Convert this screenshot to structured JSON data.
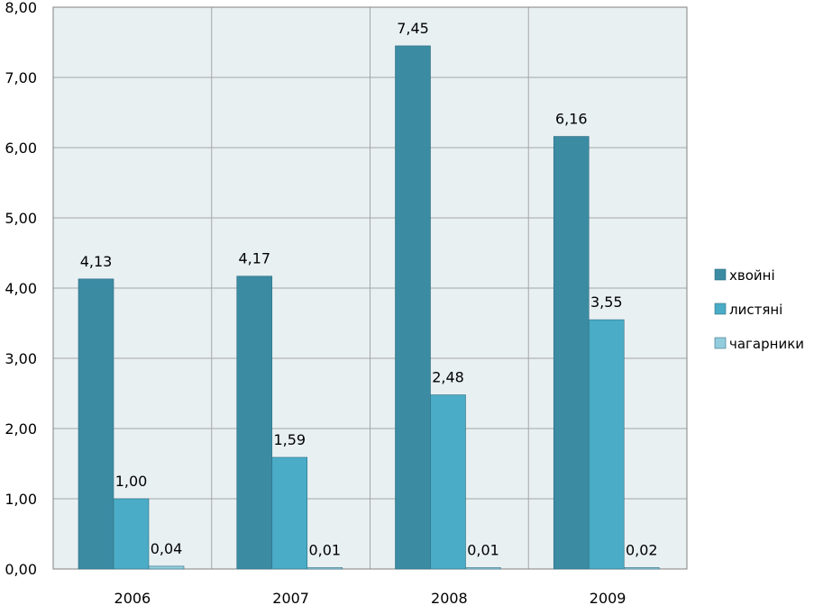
{
  "chart_data": {
    "type": "bar",
    "categories": [
      "2006",
      "2007",
      "2008",
      "2009"
    ],
    "series": [
      {
        "name": "хвойні",
        "values": [
          4.13,
          4.17,
          7.45,
          6.16
        ],
        "labels": [
          "4,13",
          "4,17",
          "7,45",
          "6,16"
        ]
      },
      {
        "name": "листяні",
        "values": [
          1.0,
          1.59,
          2.48,
          3.55
        ],
        "labels": [
          "1,00",
          "1,59",
          "2,48",
          "3,55"
        ]
      },
      {
        "name": "чагарники",
        "values": [
          0.04,
          0.01,
          0.01,
          0.02
        ],
        "labels": [
          "0,04",
          "0,01",
          "0,01",
          "0,02"
        ]
      }
    ],
    "y_ticks": [
      "0,00",
      "1,00",
      "2,00",
      "3,00",
      "4,00",
      "5,00",
      "6,00",
      "7,00",
      "8,00"
    ],
    "ylim": [
      0,
      8
    ],
    "grid": true,
    "legend_position": "right",
    "title": "",
    "xlabel": "",
    "ylabel": ""
  },
  "colors": {
    "series": [
      "#3b8ba3",
      "#4aacc6",
      "#93cddd"
    ],
    "plot_background": "#e8f0f2",
    "gridline": "#a6a6a6",
    "axis": "#808080",
    "bar_outline": "#2f6e82"
  }
}
